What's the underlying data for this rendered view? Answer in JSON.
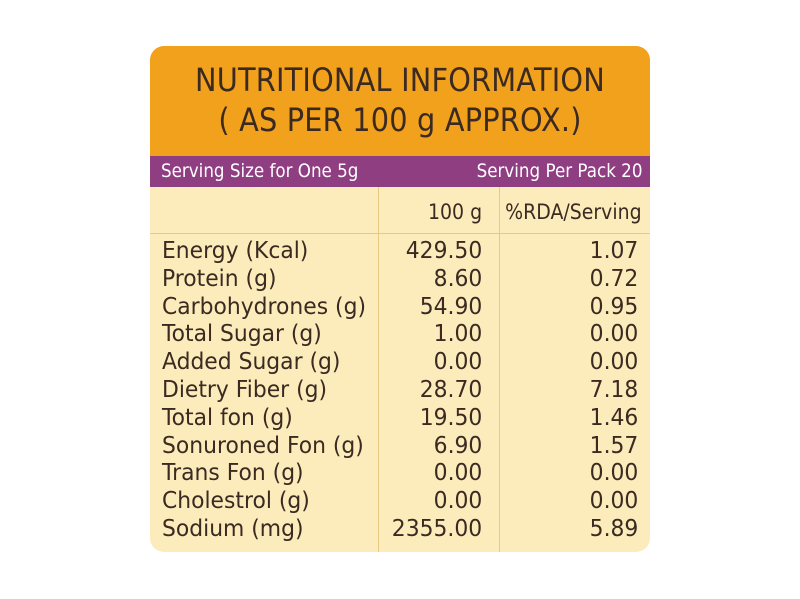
{
  "title": {
    "line1": "NUTRITIONAL INFORMATION",
    "line2": "( AS PER 100 g APPROX.)"
  },
  "serving": {
    "size": "Serving Size for One 5g",
    "per_pack": "Serving Per Pack 20"
  },
  "columns": {
    "per100": "100 g",
    "rda": "%RDA/Serving"
  },
  "rows": [
    {
      "label": "Energy (Kcal)",
      "per100": "429.50",
      "rda": "1.07"
    },
    {
      "label": "Protein (g)",
      "per100": "8.60",
      "rda": "0.72"
    },
    {
      "label": "Carbohydrones (g)",
      "per100": "54.90",
      "rda": "0.95"
    },
    {
      "label": "Total Sugar (g)",
      "per100": "1.00",
      "rda": "0.00"
    },
    {
      "label": "Added Sugar (g)",
      "per100": "0.00",
      "rda": "0.00"
    },
    {
      "label": "Dietry Fiber (g)",
      "per100": "28.70",
      "rda": "7.18"
    },
    {
      "label": "Total fon (g)",
      "per100": "19.50",
      "rda": "1.46"
    },
    {
      "label": "Sonuroned Fon (g)",
      "per100": "6.90",
      "rda": "1.57"
    },
    {
      "label": "Trans Fon (g)",
      "per100": "0.00",
      "rda": "0.00"
    },
    {
      "label": "Cholestrol (g)",
      "per100": "0.00",
      "rda": "0.00"
    },
    {
      "label": "Sodium (mg)",
      "per100": "2355.00",
      "rda": "5.89"
    }
  ],
  "colors": {
    "title_band": "#f2a11d",
    "serving_band": "#8f3e81",
    "table_bg": "#fcecbb",
    "text": "#3b2a22"
  }
}
